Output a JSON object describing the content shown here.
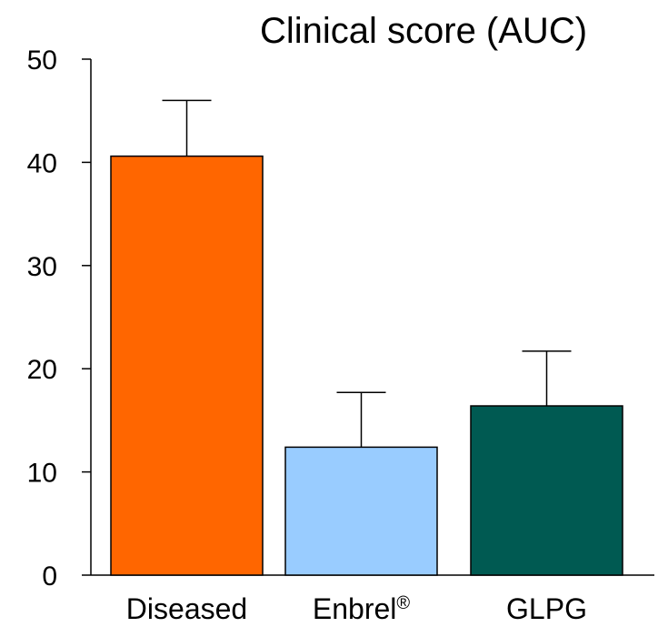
{
  "chart_data": {
    "type": "bar",
    "title": "Clinical score (AUC)",
    "xlabel": "",
    "ylabel": "",
    "categories": [
      "Diseased",
      "Enbrel®",
      "GLPG"
    ],
    "values": [
      40.6,
      12.4,
      16.4
    ],
    "errors": [
      5.4,
      5.3,
      5.3
    ],
    "colors": [
      "#ff6600",
      "#99ccff",
      "#005a52"
    ],
    "ylim": [
      0,
      50
    ],
    "yticks": [
      0,
      10,
      20,
      30,
      40,
      50
    ],
    "grid": false,
    "legend": "none"
  }
}
